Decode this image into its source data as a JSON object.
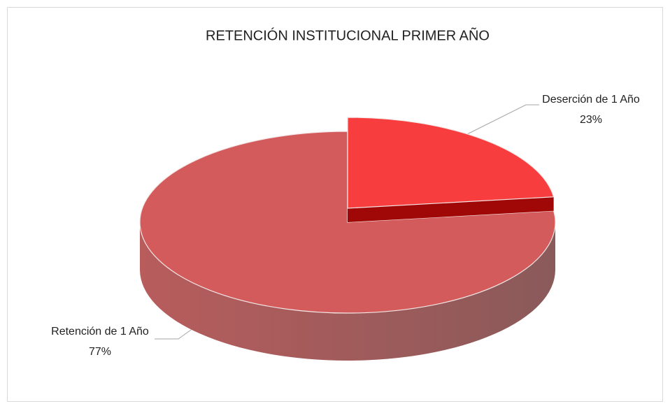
{
  "chart_data": {
    "type": "pie",
    "title": "RETENCIÓN INSTITUCIONAL PRIMER AÑO",
    "categories": [
      "Deserción de 1 Año",
      "Retención de 1 Año"
    ],
    "values": [
      23,
      77
    ],
    "value_labels": [
      "23%",
      "77%"
    ],
    "colors": [
      "#f73d3d",
      "#d45b5b"
    ]
  }
}
